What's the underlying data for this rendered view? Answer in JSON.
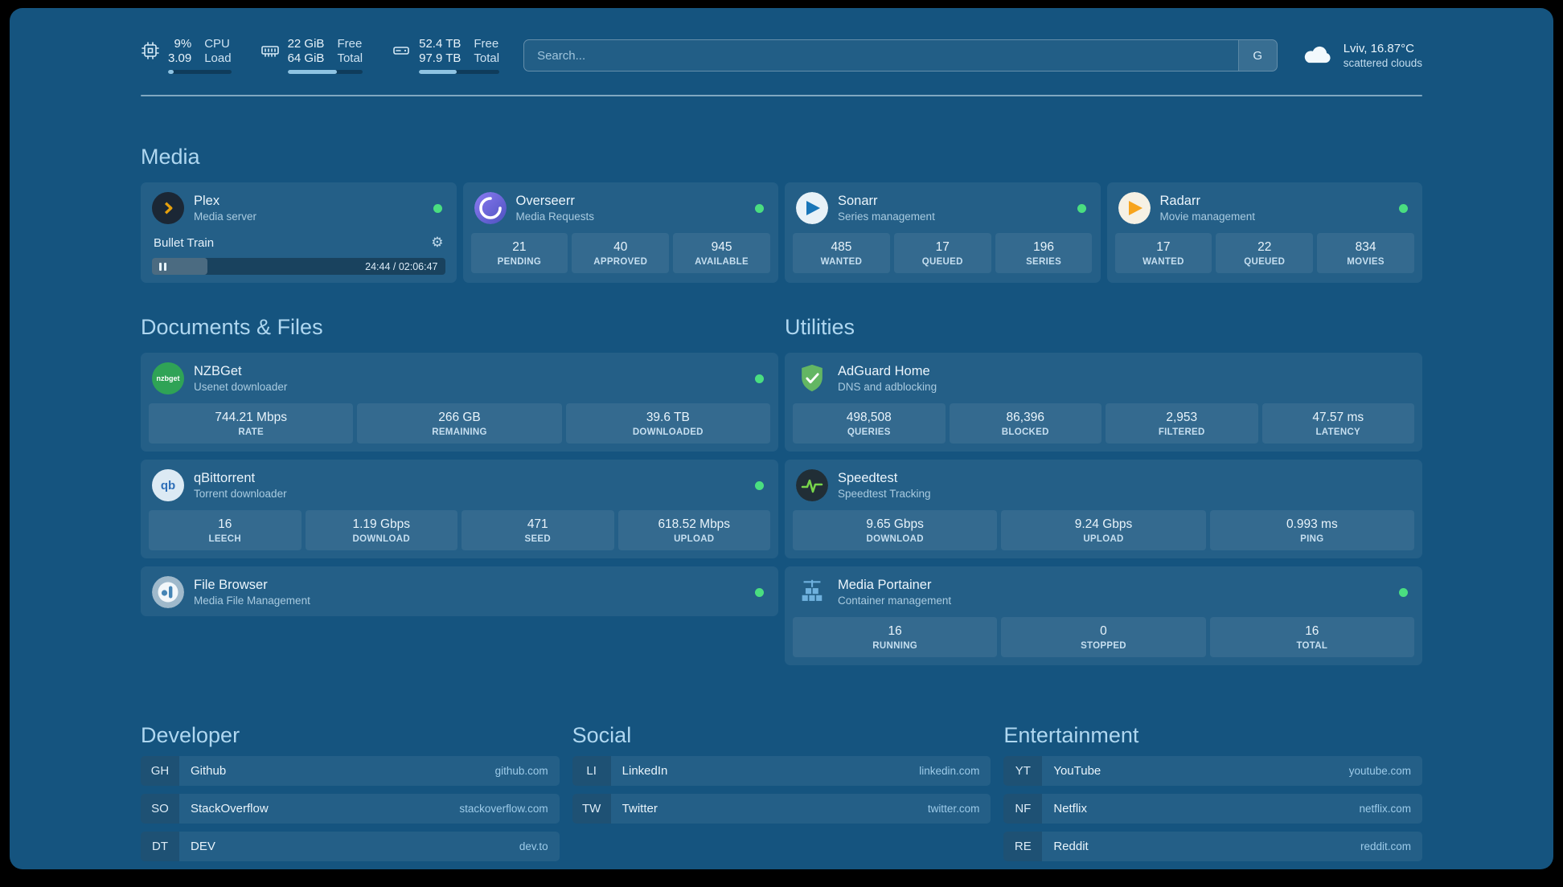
{
  "colors": {
    "background": "#15547F",
    "status_green": "#4ADE80",
    "plex_amber": "#E5A00D",
    "overseerr_purple": "#6366F1",
    "sonarr_blue": "#1976B8",
    "radarr_orange": "#F7A41D",
    "nzbget_green": "#2FA356",
    "adguard_green": "#63B663",
    "speedtest_green": "#78D64B",
    "portainer_blue": "#6FB1DE"
  },
  "header": {
    "resources": [
      {
        "icon": "cpu-icon",
        "value_top": "9%",
        "label_top": "CPU",
        "value_bottom": "3.09",
        "label_bottom": "Load",
        "progress": 9
      },
      {
        "icon": "memory-icon",
        "value_top": "22 GiB",
        "label_top": "Free",
        "value_bottom": "64 GiB",
        "label_bottom": "Total",
        "progress": 66
      },
      {
        "icon": "disk-icon",
        "value_top": "52.4 TB",
        "label_top": "Free",
        "value_bottom": "97.9 TB",
        "label_bottom": "Total",
        "progress": 47
      }
    ],
    "search": {
      "placeholder": "Search...",
      "provider_label": "G"
    },
    "weather": {
      "icon": "cloud-icon",
      "location": "Lviv, 16.87°C",
      "condition": "scattered clouds"
    }
  },
  "sections": {
    "media": {
      "title": "Media",
      "cards": [
        {
          "icon": "plex-icon",
          "name": "Plex",
          "subtitle": "Media server",
          "status": "online",
          "now_playing": {
            "title": "Bullet Train",
            "time": "24:44 / 02:06:47",
            "progress_pct": 19
          }
        },
        {
          "icon": "overseerr-icon",
          "name": "Overseerr",
          "subtitle": "Media Requests",
          "status": "online",
          "stats": [
            {
              "value": "21",
              "label": "PENDING"
            },
            {
              "value": "40",
              "label": "APPROVED"
            },
            {
              "value": "945",
              "label": "AVAILABLE"
            }
          ]
        },
        {
          "icon": "sonarr-icon",
          "name": "Sonarr",
          "subtitle": "Series management",
          "status": "online",
          "stats": [
            {
              "value": "485",
              "label": "WANTED"
            },
            {
              "value": "17",
              "label": "QUEUED"
            },
            {
              "value": "196",
              "label": "SERIES"
            }
          ]
        },
        {
          "icon": "radarr-icon",
          "name": "Radarr",
          "subtitle": "Movie management",
          "status": "online",
          "stats": [
            {
              "value": "17",
              "label": "WANTED"
            },
            {
              "value": "22",
              "label": "QUEUED"
            },
            {
              "value": "834",
              "label": "MOVIES"
            }
          ]
        }
      ]
    },
    "documents": {
      "title": "Documents & Files",
      "cards": [
        {
          "icon": "nzbget-icon",
          "name": "NZBGet",
          "subtitle": "Usenet downloader",
          "status": "online",
          "stats": [
            {
              "value": "744.21 Mbps",
              "label": "RATE"
            },
            {
              "value": "266 GB",
              "label": "REMAINING"
            },
            {
              "value": "39.6 TB",
              "label": "DOWNLOADED"
            }
          ]
        },
        {
          "icon": "qbittorrent-icon",
          "name": "qBittorrent",
          "subtitle": "Torrent downloader",
          "status": "online",
          "stats": [
            {
              "value": "16",
              "label": "LEECH"
            },
            {
              "value": "1.19 Gbps",
              "label": "DOWNLOAD"
            },
            {
              "value": "471",
              "label": "SEED"
            },
            {
              "value": "618.52 Mbps",
              "label": "UPLOAD"
            }
          ]
        },
        {
          "icon": "filebrowser-icon",
          "name": "File Browser",
          "subtitle": "Media File Management",
          "status": "online"
        }
      ]
    },
    "utilities": {
      "title": "Utilities",
      "cards": [
        {
          "icon": "adguard-icon",
          "name": "AdGuard Home",
          "subtitle": "DNS and adblocking",
          "stats": [
            {
              "value": "498,508",
              "label": "QUERIES"
            },
            {
              "value": "86,396",
              "label": "BLOCKED"
            },
            {
              "value": "2,953",
              "label": "FILTERED"
            },
            {
              "value": "47.57 ms",
              "label": "LATENCY"
            }
          ]
        },
        {
          "icon": "speedtest-icon",
          "name": "Speedtest",
          "subtitle": "Speedtest Tracking",
          "stats": [
            {
              "value": "9.65 Gbps",
              "label": "DOWNLOAD"
            },
            {
              "value": "9.24 Gbps",
              "label": "UPLOAD"
            },
            {
              "value": "0.993 ms",
              "label": "PING"
            }
          ]
        },
        {
          "icon": "portainer-icon",
          "name": "Media Portainer",
          "subtitle": "Container management",
          "status": "online",
          "stats": [
            {
              "value": "16",
              "label": "RUNNING"
            },
            {
              "value": "0",
              "label": "STOPPED"
            },
            {
              "value": "16",
              "label": "TOTAL"
            }
          ]
        }
      ]
    }
  },
  "bookmarks": [
    {
      "title": "Developer",
      "items": [
        {
          "abbr": "GH",
          "name": "Github",
          "domain": "github.com"
        },
        {
          "abbr": "SO",
          "name": "StackOverflow",
          "domain": "stackoverflow.com"
        },
        {
          "abbr": "DT",
          "name": "DEV",
          "domain": "dev.to"
        }
      ]
    },
    {
      "title": "Social",
      "items": [
        {
          "abbr": "LI",
          "name": "LinkedIn",
          "domain": "linkedin.com"
        },
        {
          "abbr": "TW",
          "name": "Twitter",
          "domain": "twitter.com"
        }
      ]
    },
    {
      "title": "Entertainment",
      "items": [
        {
          "abbr": "YT",
          "name": "YouTube",
          "domain": "youtube.com"
        },
        {
          "abbr": "NF",
          "name": "Netflix",
          "domain": "netflix.com"
        },
        {
          "abbr": "RE",
          "name": "Reddit",
          "domain": "reddit.com"
        }
      ]
    }
  ]
}
